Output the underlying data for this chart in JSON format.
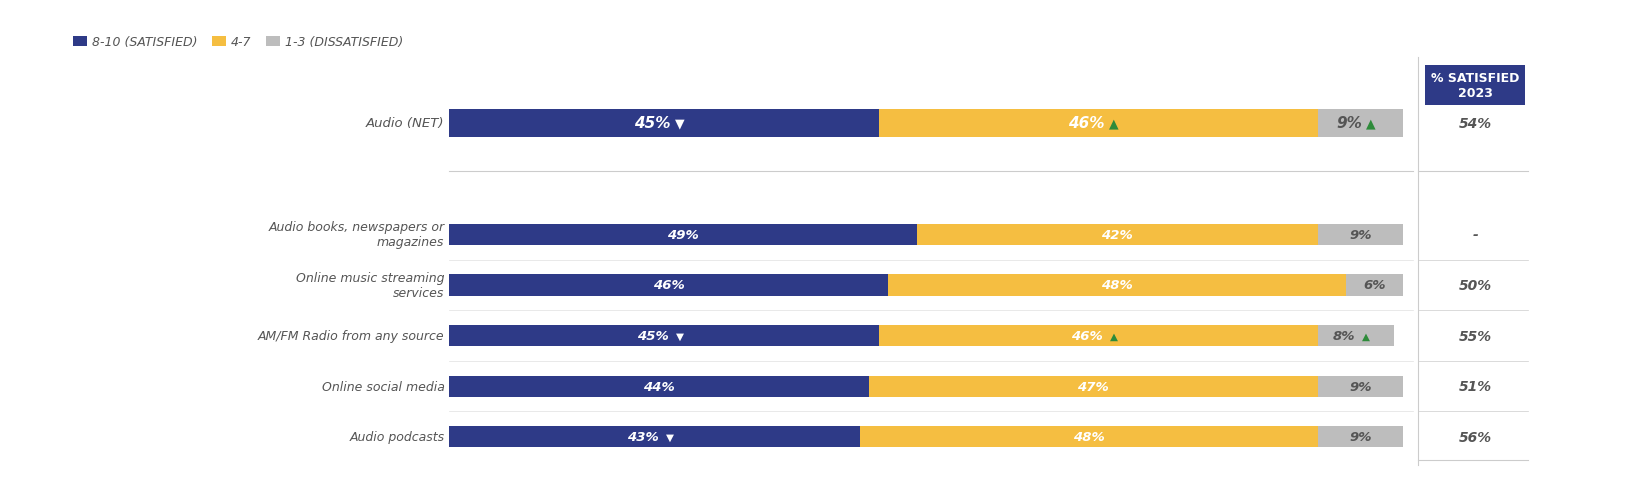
{
  "categories": [
    "Audio (NET)",
    "Audio books, newspapers or\nmagazines",
    "Online music streaming\nservices",
    "AM/FM Radio from any source",
    "Online social media",
    "Audio podcasts"
  ],
  "is_net": [
    true,
    false,
    false,
    false,
    false,
    false
  ],
  "blue_vals": [
    45,
    49,
    46,
    45,
    44,
    43
  ],
  "yellow_vals": [
    46,
    42,
    48,
    46,
    47,
    48
  ],
  "gray_vals": [
    9,
    9,
    6,
    8,
    9,
    9
  ],
  "blue_labels": [
    "45%▼",
    "49%",
    "46%",
    "45%▼",
    "44%",
    "43%▼"
  ],
  "yellow_labels": [
    "46%▲",
    "42%",
    "48%",
    "46%▲",
    "47%",
    "48%"
  ],
  "gray_labels": [
    "9%▲",
    "9%",
    "6%",
    "8%▲",
    "9%",
    "9%"
  ],
  "yellow_arrow_green": [
    true,
    false,
    false,
    true,
    false,
    false
  ],
  "gray_arrow_green": [
    true,
    false,
    false,
    true,
    false,
    false
  ],
  "blue_arrow_white": [
    true,
    true,
    true,
    true,
    true,
    true
  ],
  "satisfied_2023": [
    "54%",
    "-",
    "50%",
    "55%",
    "51%",
    "56%"
  ],
  "blue_color": "#2E3A87",
  "yellow_color": "#F5BE41",
  "gray_color": "#BDBDBD",
  "green_color": "#2E8B3A",
  "white_color": "#FFFFFF",
  "dark_text": "#555555",
  "header_bg": "#2E3A87",
  "header_text": "#FFFFFF",
  "legend_items": [
    "8-10 (SATISFIED)",
    "4-7",
    "1-3 (DISSATISFIED)"
  ],
  "legend_colors": [
    "#2E3A87",
    "#F5BE41",
    "#BDBDBD"
  ]
}
